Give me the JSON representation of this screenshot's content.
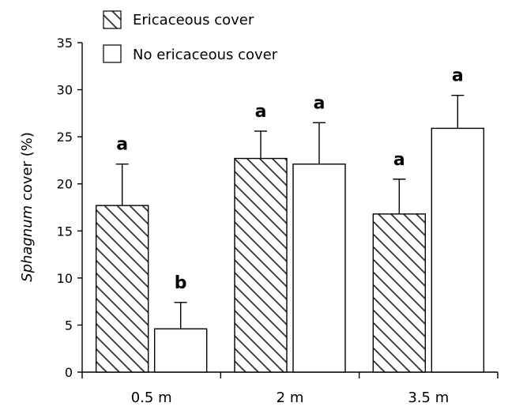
{
  "chart_data": {
    "type": "bar",
    "title": "",
    "ylabel_italic": "Sphagnum",
    "ylabel_rest": " cover (%)",
    "xlabel": "",
    "ylim": [
      0,
      35
    ],
    "yticks": [
      "0",
      "5",
      "10",
      "15",
      "20",
      "25",
      "30",
      "35"
    ],
    "ytick_values": [
      0,
      5,
      10,
      15,
      20,
      25,
      30,
      35
    ],
    "categories": [
      "0.5 m",
      "2 m",
      "3.5 m"
    ],
    "series": [
      {
        "name": "Ericaceous cover",
        "pattern": "hatched",
        "values": [
          17.7,
          22.7,
          16.8
        ],
        "errors": [
          4.4,
          2.9,
          3.7
        ],
        "letters": [
          "a",
          "a",
          "a"
        ]
      },
      {
        "name": "No ericaceous cover",
        "pattern": "open",
        "values": [
          4.6,
          22.1,
          25.9
        ],
        "errors": [
          2.8,
          4.4,
          3.5
        ],
        "letters": [
          "b",
          "a",
          "a"
        ]
      }
    ],
    "legend_position": "top-left",
    "grid": false,
    "colors": {
      "bar_fill": "#ffffff",
      "stroke": "#000000",
      "hatch": "#333333"
    }
  }
}
